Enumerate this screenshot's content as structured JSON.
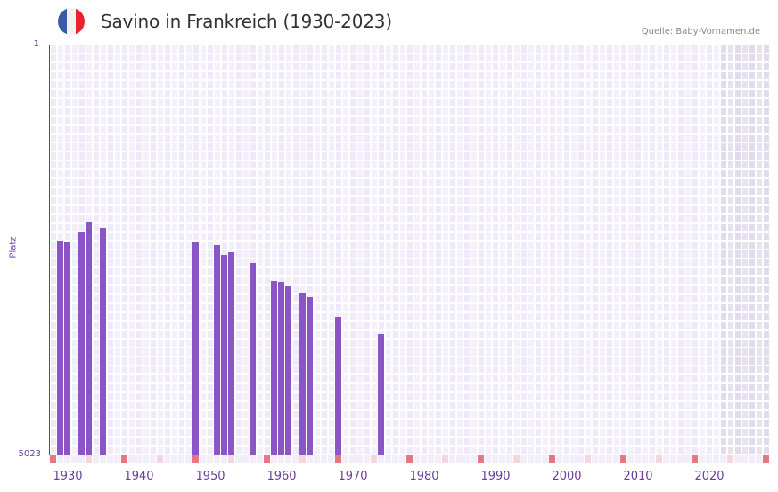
{
  "header": {
    "title": "Savino in Frankreich (1930-2023)",
    "source": "Quelle: Baby-Vornamen.de",
    "flag_colors": [
      "#3a59a8",
      "#f2f2f2",
      "#e8232d"
    ]
  },
  "axes": {
    "y_top_label": "1",
    "y_bottom_label": "5023",
    "y_title": "Platz",
    "x_labels": [
      "1930",
      "1940",
      "1950",
      "1960",
      "1970",
      "1980",
      "1990",
      "2000",
      "2010",
      "2020"
    ]
  },
  "colors": {
    "bar": "#8c55c6",
    "axis": "#6a3d9a",
    "grid_a": "#efe9f9",
    "grid_b": "#f4f0fb",
    "future_a": "#e0dbed",
    "future_b": "#e6e3ee",
    "marker_decade": "#e57682",
    "marker_half": "#f5d6df",
    "marker_default": "#f1edf9"
  },
  "chart_data": {
    "type": "bar",
    "title": "Savino in Frankreich (1930-2023)",
    "xlabel": "",
    "ylabel": "Platz",
    "y_inverted": true,
    "ylim": [
      1,
      5023
    ],
    "xlim": [
      1928,
      2028
    ],
    "shaded_future_from": 2022,
    "grid": true,
    "x": [
      1929,
      1930,
      1932,
      1933,
      1935,
      1948,
      1951,
      1952,
      1953,
      1956,
      1959,
      1960,
      1961,
      1963,
      1964,
      1968,
      1974
    ],
    "values": [
      2403,
      2425,
      2294,
      2174,
      2250,
      2414,
      2457,
      2577,
      2545,
      2676,
      2894,
      2905,
      2960,
      3047,
      3091,
      3342,
      3549
    ]
  }
}
